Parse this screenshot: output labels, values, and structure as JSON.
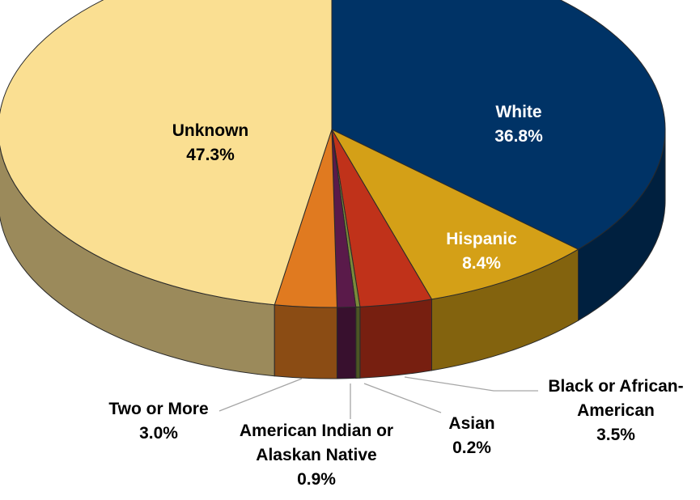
{
  "chart_data": {
    "type": "pie",
    "title": "",
    "legend": "none",
    "categories": [
      "White",
      "Hispanic",
      "Black or African-American",
      "Asian",
      "American Indian or Alaskan Native",
      "Two or More",
      "Unknown"
    ],
    "values": [
      36.8,
      8.4,
      3.5,
      0.2,
      0.9,
      3.0,
      47.3
    ],
    "labels": [
      {
        "lines": [
          "White",
          "36.8%"
        ]
      },
      {
        "lines": [
          "Hispanic",
          "8.4%"
        ]
      },
      {
        "lines": [
          "Black or African-",
          "American",
          "3.5%"
        ]
      },
      {
        "lines": [
          "Asian",
          "0.2%"
        ]
      },
      {
        "lines": [
          "American Indian or",
          "Alaskan Native",
          "0.9%"
        ]
      },
      {
        "lines": [
          "Two or More",
          "3.0%"
        ]
      },
      {
        "lines": [
          "Unknown",
          "47.3%"
        ]
      }
    ],
    "colors": [
      "#003366",
      "#D4A017",
      "#C0321A",
      "#7A8A3A",
      "#5A1A4A",
      "#E07A20",
      "#FADF92"
    ]
  }
}
